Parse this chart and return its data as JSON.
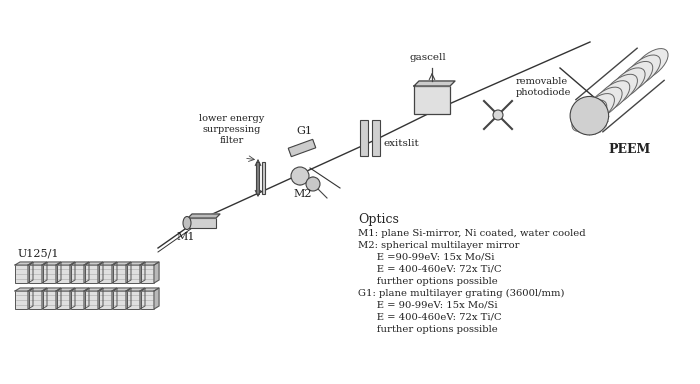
{
  "bg_color": "#ffffff",
  "text_color": "#222222",
  "line_color": "#444444",
  "optics_title": "Optics",
  "optics_lines": [
    "M1: plane Si-mirror, Ni coated, water cooled",
    "M2: spherical multilayer mirror",
    "      E =90-99eV: 15x Mo/Si",
    "      E = 400-460eV: 72x Ti/C",
    "      further options possible",
    "G1: plane multilayer grating (3600l/mm)",
    "      E = 90-99eV: 15x Mo/Si",
    "      E = 400-460eV: 72x Ti/C",
    "      further options possible"
  ],
  "label_undulator": "U125/1",
  "label_M1": "M1",
  "label_filter": "lower energy\nsurpressing\nfilter",
  "label_M2": "M2",
  "label_G1": "G1",
  "label_exitslit": "exitslit",
  "label_gascell": "gascell",
  "label_photodiode": "removable\nphotodiode",
  "label_PEEM": "PEEM"
}
